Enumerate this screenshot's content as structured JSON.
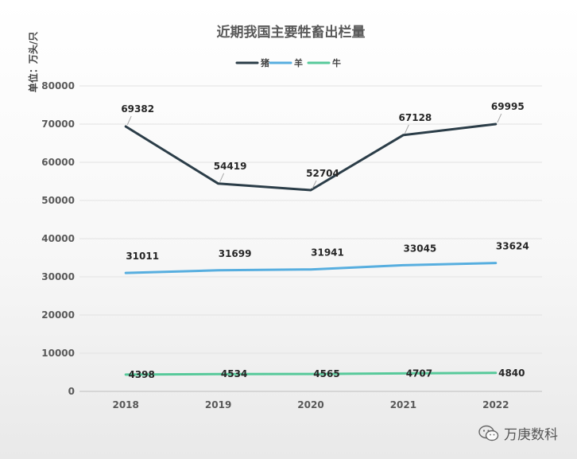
{
  "watermark": {
    "text": "万庚数科",
    "icon": "wechat-icon"
  },
  "chart_data": {
    "type": "line",
    "title": "近期我国主要牲畜出栏量",
    "ylabel": "单位：万头/只",
    "xlabel": "",
    "categories": [
      "2018",
      "2019",
      "2020",
      "2021",
      "2022"
    ],
    "ylim": [
      0,
      80000
    ],
    "yticks": [
      0,
      10000,
      20000,
      30000,
      40000,
      50000,
      60000,
      70000,
      80000
    ],
    "grid": true,
    "legend_position": "top-center",
    "series": [
      {
        "name": "猪",
        "color": "#2b3d48",
        "values": [
          69382,
          54419,
          52704,
          67128,
          69995
        ]
      },
      {
        "name": "羊",
        "color": "#57aedf",
        "values": [
          31011,
          31699,
          31941,
          33045,
          33624
        ]
      },
      {
        "name": "牛",
        "color": "#57c99a",
        "values": [
          4398,
          4534,
          4565,
          4707,
          4840
        ]
      }
    ]
  }
}
